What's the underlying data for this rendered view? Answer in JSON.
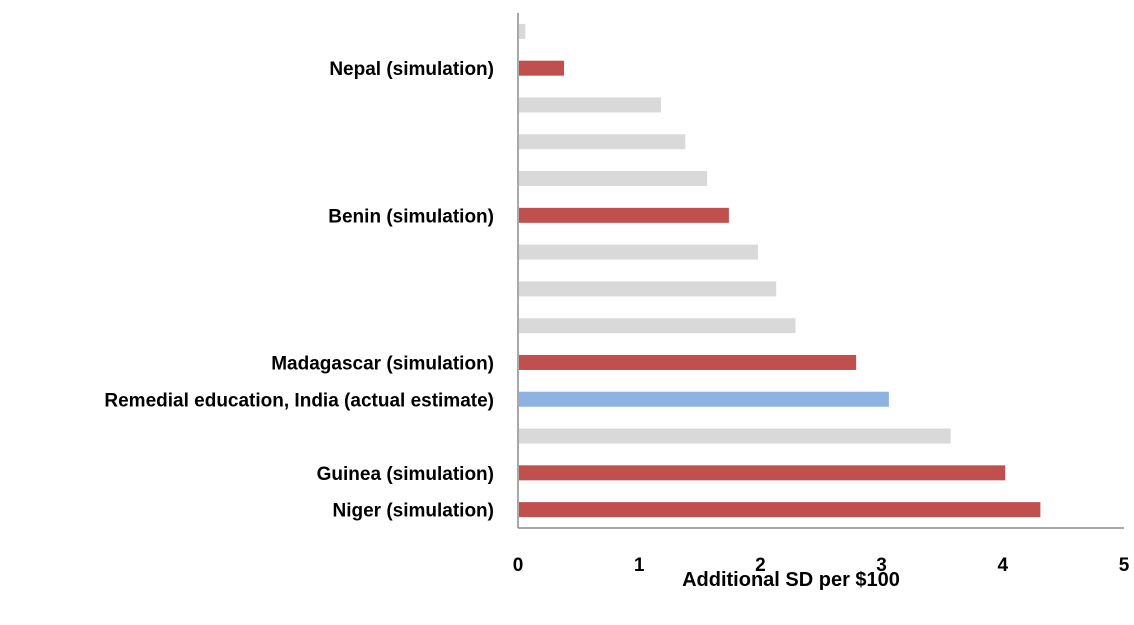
{
  "chart_data": {
    "type": "bar",
    "orientation": "horizontal",
    "categories": [
      "Niger (simulation)",
      "Guinea (simulation)",
      "",
      "Remedial education, India (actual estimate)",
      "Madagascar (simulation)",
      "",
      "",
      "",
      "Benin (simulation)",
      "",
      "",
      "",
      "Nepal (simulation)",
      ""
    ],
    "values": [
      4.31,
      4.02,
      3.57,
      3.06,
      2.79,
      2.29,
      2.13,
      1.98,
      1.74,
      1.56,
      1.38,
      1.18,
      0.38,
      0.06
    ],
    "bar_colors": [
      "#c0504d",
      "#c0504d",
      "#d9d9d9",
      "#8db3e2",
      "#c0504d",
      "#d9d9d9",
      "#d9d9d9",
      "#d9d9d9",
      "#c0504d",
      "#d9d9d9",
      "#d9d9d9",
      "#d9d9d9",
      "#c0504d",
      "#d9d9d9"
    ],
    "xlabel": "Additional SD per $100",
    "ylabel": "",
    "title": "",
    "xlim": [
      0,
      5
    ],
    "xticks": [
      "0",
      "1",
      "2",
      "3",
      "4",
      "5"
    ],
    "grid": false,
    "legend": "none"
  }
}
